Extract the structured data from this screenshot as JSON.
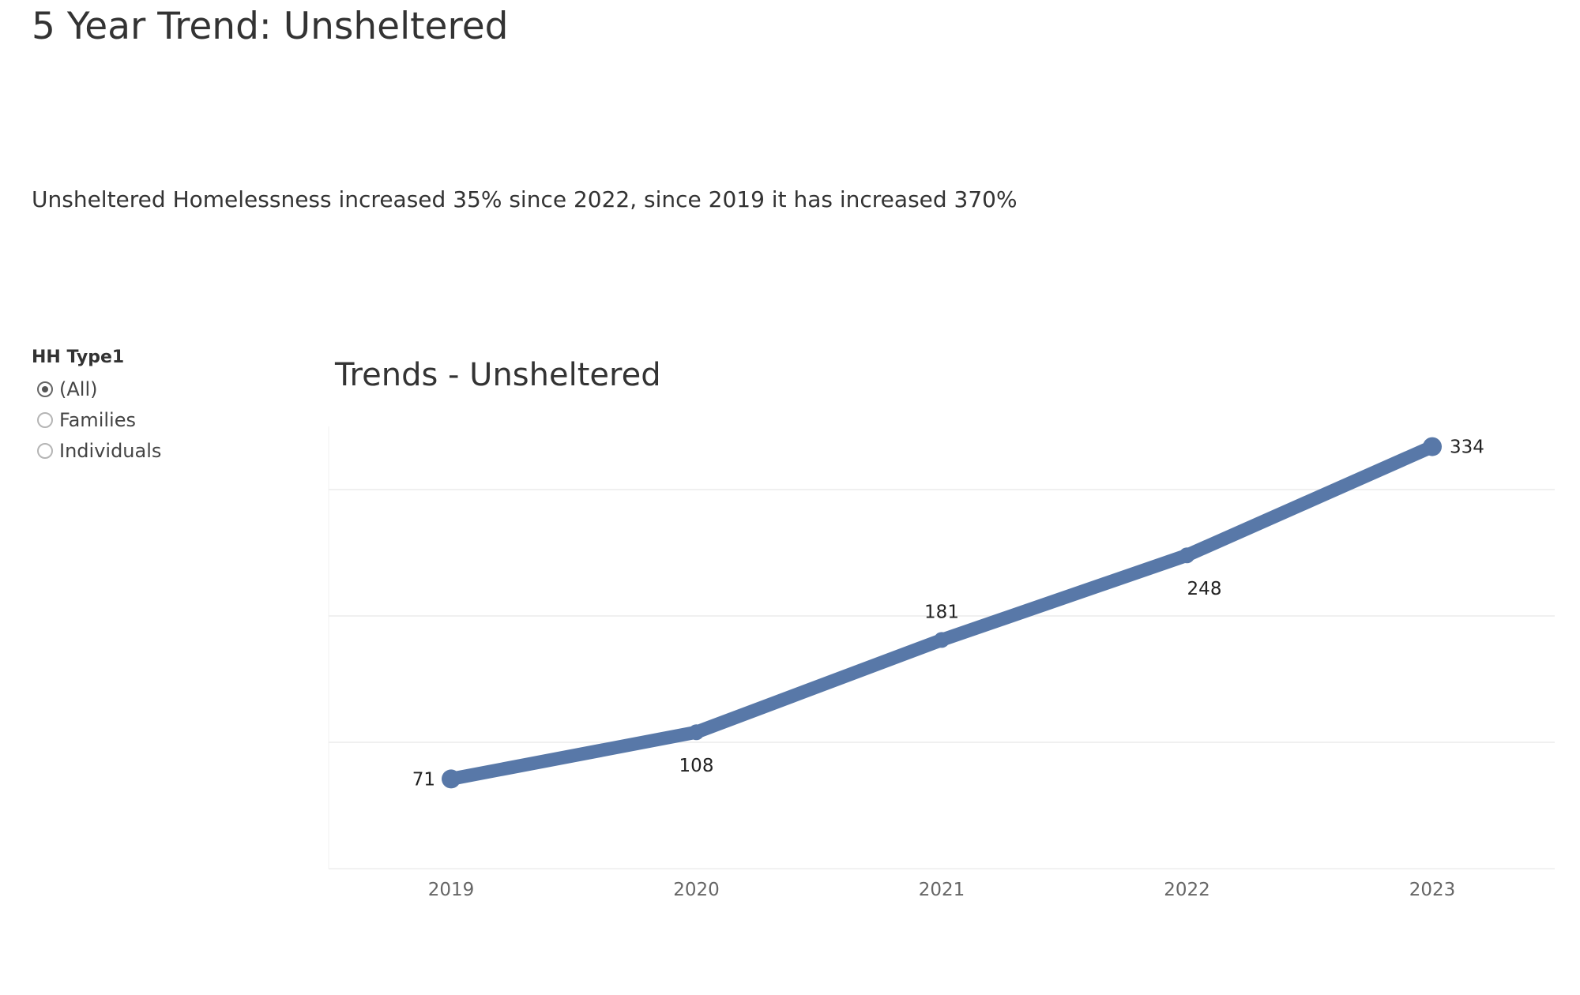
{
  "header": {
    "title": "5 Year Trend: Unsheltered",
    "summary": "Unsheltered Homelessness increased 35% since 2022, since 2019 it has increased 370%"
  },
  "filter": {
    "title": "HH Type1",
    "options": [
      {
        "label": "(All)",
        "selected": true
      },
      {
        "label": "Families",
        "selected": false
      },
      {
        "label": "Individuals",
        "selected": false
      }
    ]
  },
  "colors": {
    "line": "#5878a8",
    "gridline": "#ececec"
  },
  "chart_data": {
    "type": "line",
    "title": "Trends - Unsheltered",
    "x": [
      "2019",
      "2020",
      "2021",
      "2022",
      "2023"
    ],
    "series": [
      {
        "values": [
          71,
          108,
          181,
          248,
          334
        ]
      }
    ],
    "data_labels": [
      "71",
      "108",
      "181",
      "248",
      "334"
    ],
    "xlabel": "",
    "ylabel": "",
    "ylim": [
      0,
      350
    ],
    "y_axis_visible": false,
    "grid": true,
    "legend": "none"
  }
}
